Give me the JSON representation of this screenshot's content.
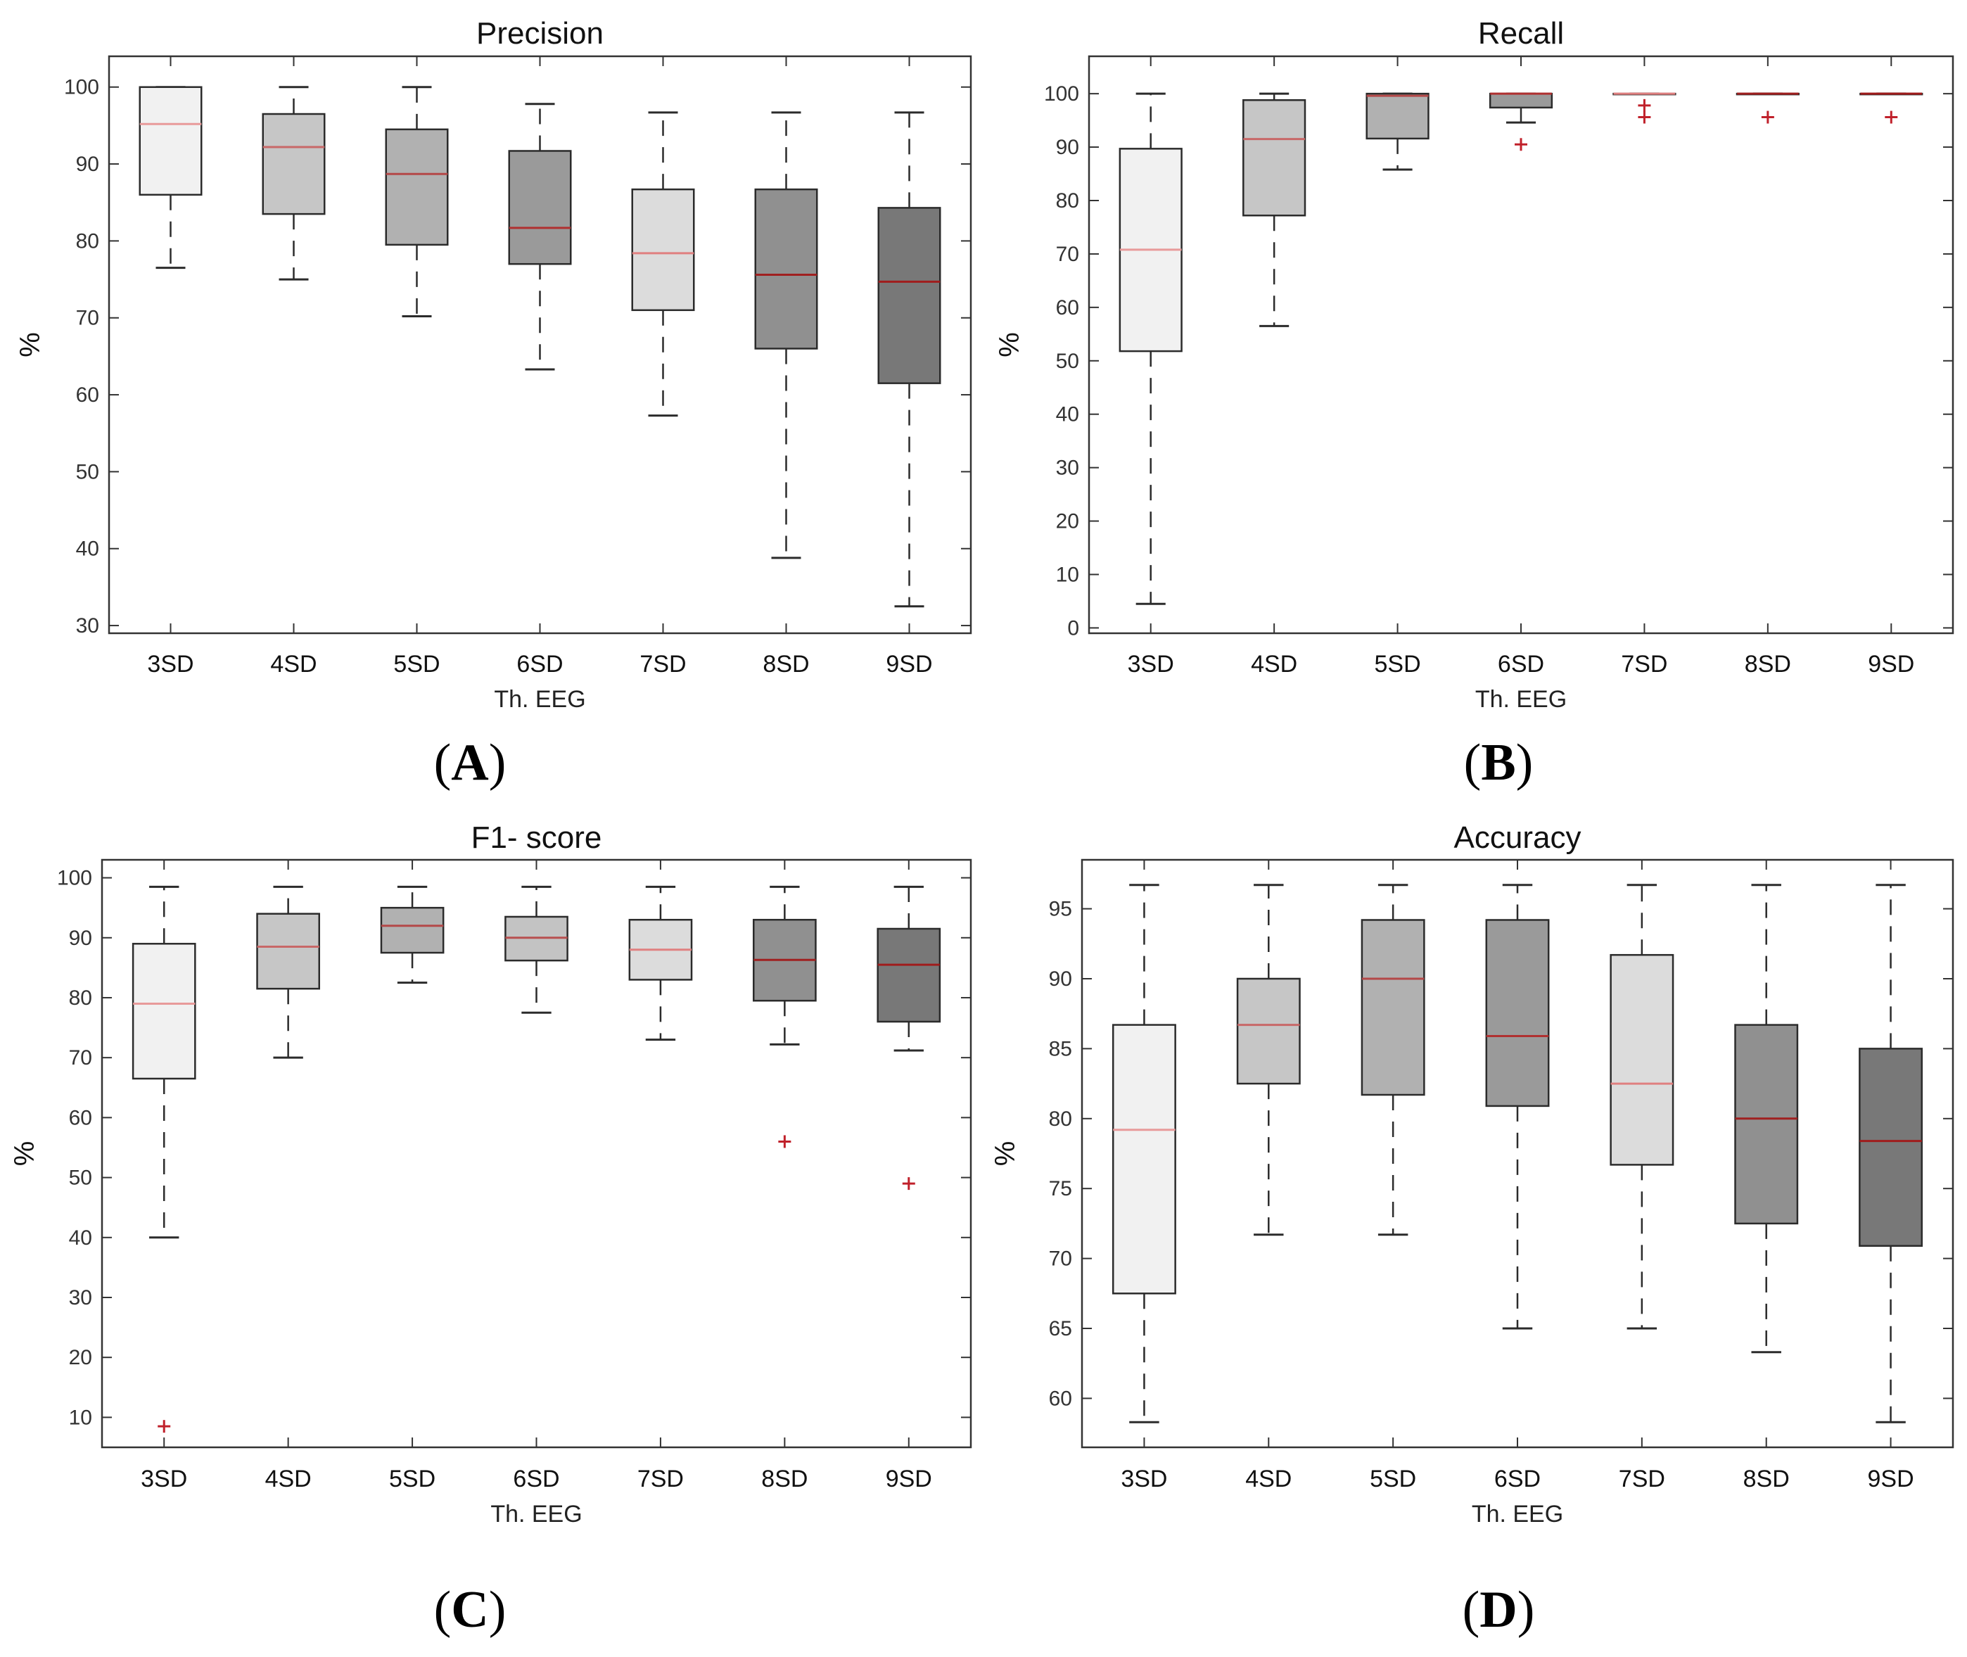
{
  "chart_data": [
    {
      "id": "A",
      "type": "boxplot",
      "title": "Precision",
      "xlabel": "Th. EEG",
      "ylabel": "%",
      "panel_label": "A",
      "ylim": [
        29,
        104
      ],
      "yticks": [
        30,
        40,
        50,
        60,
        70,
        80,
        90,
        100
      ],
      "categories": [
        "3SD",
        "4SD",
        "5SD",
        "6SD",
        "7SD",
        "8SD",
        "9SD"
      ],
      "box_fills": [
        "#f1f1f1",
        "#c6c6c6",
        "#b1b1b1",
        "#9a9a9a",
        "#dcdcdc",
        "#909090",
        "#787878"
      ],
      "median_colors": [
        "#e89a9a",
        "#c86868",
        "#b44848",
        "#b03030",
        "#e08080",
        "#a02020",
        "#a01c1c"
      ],
      "series": [
        {
          "category": "3SD",
          "whisker_low": 76.5,
          "q1": 86,
          "median": 95.2,
          "q3": 100,
          "whisker_high": 100,
          "outliers": []
        },
        {
          "category": "4SD",
          "whisker_low": 75,
          "q1": 83.5,
          "median": 92.2,
          "q3": 96.5,
          "whisker_high": 100,
          "outliers": []
        },
        {
          "category": "5SD",
          "whisker_low": 70.2,
          "q1": 79.5,
          "median": 88.7,
          "q3": 94.5,
          "whisker_high": 100,
          "outliers": []
        },
        {
          "category": "6SD",
          "whisker_low": 63.3,
          "q1": 77,
          "median": 81.7,
          "q3": 91.7,
          "whisker_high": 97.8,
          "outliers": []
        },
        {
          "category": "7SD",
          "whisker_low": 57.3,
          "q1": 71,
          "median": 78.4,
          "q3": 86.7,
          "whisker_high": 96.7,
          "outliers": []
        },
        {
          "category": "8SD",
          "whisker_low": 38.8,
          "q1": 66,
          "median": 75.6,
          "q3": 86.7,
          "whisker_high": 96.7,
          "outliers": []
        },
        {
          "category": "9SD",
          "whisker_low": 32.5,
          "q1": 61.5,
          "median": 74.7,
          "q3": 84.3,
          "whisker_high": 96.7,
          "outliers": []
        }
      ]
    },
    {
      "id": "B",
      "type": "boxplot",
      "title": "Recall",
      "xlabel": "Th. EEG",
      "ylabel": "%",
      "panel_label": "B",
      "ylim": [
        -1,
        107
      ],
      "yticks": [
        0,
        10,
        20,
        30,
        40,
        50,
        60,
        70,
        80,
        90,
        100
      ],
      "categories": [
        "3SD",
        "4SD",
        "5SD",
        "6SD",
        "7SD",
        "8SD",
        "9SD"
      ],
      "box_fills": [
        "#f1f1f1",
        "#c6c6c6",
        "#b1b1b1",
        "#9a9a9a",
        "#dcdcdc",
        "#909090",
        "#787878"
      ],
      "median_colors": [
        "#e89a9a",
        "#c86868",
        "#b44848",
        "#b03030",
        "#e08080",
        "#a02020",
        "#a01c1c"
      ],
      "series": [
        {
          "category": "3SD",
          "whisker_low": 4.5,
          "q1": 51.8,
          "median": 70.8,
          "q3": 89.7,
          "whisker_high": 100,
          "outliers": []
        },
        {
          "category": "4SD",
          "whisker_low": 56.5,
          "q1": 77.2,
          "median": 91.5,
          "q3": 98.8,
          "whisker_high": 100,
          "outliers": []
        },
        {
          "category": "5SD",
          "whisker_low": 85.8,
          "q1": 91.6,
          "median": 99.6,
          "q3": 100,
          "whisker_high": 100,
          "outliers": []
        },
        {
          "category": "6SD",
          "whisker_low": 94.6,
          "q1": 97.4,
          "median": 100,
          "q3": 100,
          "whisker_high": 100,
          "outliers": [
            90.5
          ]
        },
        {
          "category": "7SD",
          "whisker_low": 100,
          "q1": 100,
          "median": 100,
          "q3": 100,
          "whisker_high": 100,
          "outliers": [
            97.8,
            95.6
          ]
        },
        {
          "category": "8SD",
          "whisker_low": 100,
          "q1": 100,
          "median": 100,
          "q3": 100,
          "whisker_high": 100,
          "outliers": [
            95.6
          ]
        },
        {
          "category": "9SD",
          "whisker_low": 100,
          "q1": 100,
          "median": 100,
          "q3": 100,
          "whisker_high": 100,
          "outliers": [
            95.6
          ]
        }
      ]
    },
    {
      "id": "C",
      "type": "boxplot",
      "title": "F1- score",
      "xlabel": "Th. EEG",
      "ylabel": "%",
      "panel_label": "C",
      "ylim": [
        5,
        103
      ],
      "yticks": [
        10,
        20,
        30,
        40,
        50,
        60,
        70,
        80,
        90,
        100
      ],
      "categories": [
        "3SD",
        "4SD",
        "5SD",
        "6SD",
        "7SD",
        "8SD",
        "9SD"
      ],
      "box_fills": [
        "#f1f1f1",
        "#c6c6c6",
        "#b1b1b1",
        "#c3c3c3",
        "#dcdcdc",
        "#909090",
        "#787878"
      ],
      "median_colors": [
        "#e89a9a",
        "#c86868",
        "#b44848",
        "#b85050",
        "#e08080",
        "#a02020",
        "#a01c1c"
      ],
      "series": [
        {
          "category": "3SD",
          "whisker_low": 40,
          "q1": 66.5,
          "median": 79,
          "q3": 89,
          "whisker_high": 98.5,
          "outliers": [
            8.5
          ]
        },
        {
          "category": "4SD",
          "whisker_low": 70,
          "q1": 81.5,
          "median": 88.5,
          "q3": 94,
          "whisker_high": 98.5,
          "outliers": []
        },
        {
          "category": "5SD",
          "whisker_low": 82.5,
          "q1": 87.5,
          "median": 92,
          "q3": 95,
          "whisker_high": 98.5,
          "outliers": []
        },
        {
          "category": "6SD",
          "whisker_low": 77.5,
          "q1": 86.2,
          "median": 90,
          "q3": 93.5,
          "whisker_high": 98.5,
          "outliers": []
        },
        {
          "category": "7SD",
          "whisker_low": 73,
          "q1": 83,
          "median": 88,
          "q3": 93,
          "whisker_high": 98.5,
          "outliers": []
        },
        {
          "category": "8SD",
          "whisker_low": 72.2,
          "q1": 79.5,
          "median": 86.3,
          "q3": 93,
          "whisker_high": 98.5,
          "outliers": [
            56
          ]
        },
        {
          "category": "9SD",
          "whisker_low": 71.2,
          "q1": 76,
          "median": 85.5,
          "q3": 91.5,
          "whisker_high": 98.5,
          "outliers": [
            49
          ]
        }
      ]
    },
    {
      "id": "D",
      "type": "boxplot",
      "title": "Accuracy",
      "xlabel": "Th. EEG",
      "ylabel": "%",
      "panel_label": "D",
      "ylim": [
        56.5,
        98.5
      ],
      "yticks": [
        60,
        65,
        70,
        75,
        80,
        85,
        90,
        95
      ],
      "categories": [
        "3SD",
        "4SD",
        "5SD",
        "6SD",
        "7SD",
        "8SD",
        "9SD"
      ],
      "box_fills": [
        "#f1f1f1",
        "#c6c6c6",
        "#b1b1b1",
        "#9a9a9a",
        "#dcdcdc",
        "#909090",
        "#787878"
      ],
      "median_colors": [
        "#e89a9a",
        "#c86868",
        "#b44848",
        "#b03030",
        "#e08080",
        "#a02020",
        "#a01c1c"
      ],
      "series": [
        {
          "category": "3SD",
          "whisker_low": 58.3,
          "q1": 67.5,
          "median": 79.2,
          "q3": 86.7,
          "whisker_high": 96.7,
          "outliers": []
        },
        {
          "category": "4SD",
          "whisker_low": 71.7,
          "q1": 82.5,
          "median": 86.7,
          "q3": 90,
          "whisker_high": 96.7,
          "outliers": []
        },
        {
          "category": "5SD",
          "whisker_low": 71.7,
          "q1": 81.7,
          "median": 90,
          "q3": 94.2,
          "whisker_high": 96.7,
          "outliers": []
        },
        {
          "category": "6SD",
          "whisker_low": 65,
          "q1": 80.9,
          "median": 85.9,
          "q3": 94.2,
          "whisker_high": 96.7,
          "outliers": []
        },
        {
          "category": "7SD",
          "whisker_low": 65,
          "q1": 76.7,
          "median": 82.5,
          "q3": 91.7,
          "whisker_high": 96.7,
          "outliers": []
        },
        {
          "category": "8SD",
          "whisker_low": 63.3,
          "q1": 72.5,
          "median": 80,
          "q3": 86.7,
          "whisker_high": 96.7,
          "outliers": []
        },
        {
          "category": "9SD",
          "whisker_low": 58.3,
          "q1": 70.9,
          "median": 78.4,
          "q3": 85,
          "whisker_high": 96.7,
          "outliers": []
        }
      ]
    }
  ],
  "colors": {
    "axes": "#333333",
    "whisker": "#2b2b2b",
    "box_edge": "#2b2b2b",
    "outlier": "#c0202a"
  }
}
